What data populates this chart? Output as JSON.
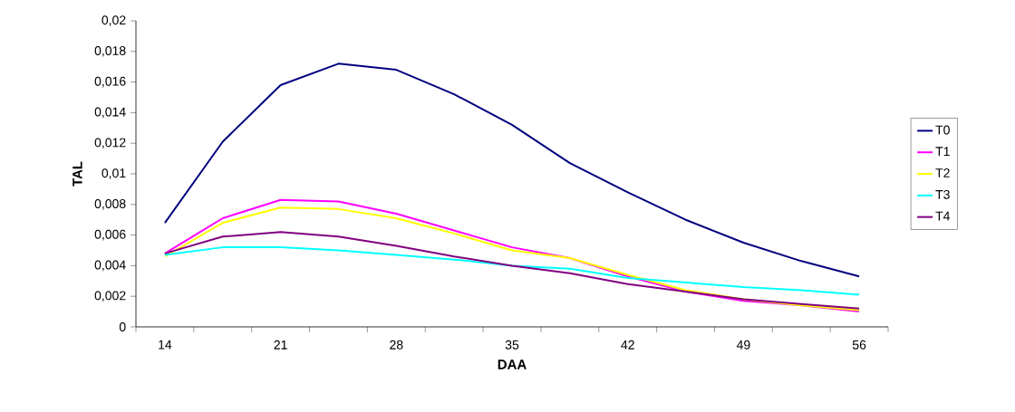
{
  "chart_data": {
    "type": "line",
    "xlabel": "DAA",
    "ylabel": "TAL",
    "categories": [
      "14",
      null,
      "21",
      null,
      "28",
      null,
      "35",
      null,
      "42",
      null,
      "49",
      null,
      "56"
    ],
    "series": [
      {
        "name": "T0",
        "color": "#000080",
        "values": [
          0.0068,
          0.0121,
          0.0158,
          0.0172,
          0.0168,
          0.0152,
          0.0132,
          0.0107,
          0.0088,
          0.007,
          0.0055,
          0.0043,
          0.0033
        ]
      },
      {
        "name": "T1",
        "color": "#ff00ff",
        "values": [
          0.0048,
          0.0071,
          0.0083,
          0.0082,
          0.0074,
          0.0063,
          0.0052,
          0.0045,
          0.0033,
          0.0023,
          0.0017,
          0.0014,
          0.001
        ]
      },
      {
        "name": "T2",
        "color": "#ffff00",
        "values": [
          0.0046,
          0.0068,
          0.0078,
          0.0077,
          0.0071,
          0.0061,
          0.005,
          0.0045,
          0.0034,
          0.0024,
          0.0018,
          0.0014,
          0.0011
        ]
      },
      {
        "name": "T3",
        "color": "#00ffff",
        "values": [
          0.0047,
          0.0052,
          0.0052,
          0.005,
          0.0047,
          0.0044,
          0.004,
          0.0038,
          0.0032,
          0.0029,
          0.0026,
          0.0024,
          0.0021
        ]
      },
      {
        "name": "T4",
        "color": "#800080",
        "values": [
          0.0048,
          0.0059,
          0.0062,
          0.0059,
          0.0053,
          0.0046,
          0.004,
          0.0035,
          0.0028,
          0.0023,
          0.0018,
          0.0015,
          0.0012
        ]
      }
    ],
    "ylim": [
      0,
      0.02
    ],
    "yticks": [
      0,
      {
        "value": 0.002,
        "label": "0,002"
      },
      {
        "value": 0.004,
        "label": "0,004"
      },
      {
        "value": 0.006,
        "label": "0,006"
      },
      {
        "value": 0.008,
        "label": "0,008"
      },
      {
        "value": 0.01,
        "label": "0,01"
      },
      {
        "value": 0.012,
        "label": "0,012"
      },
      {
        "value": 0.014,
        "label": "0,014"
      },
      {
        "value": 0.016,
        "label": "0,016"
      },
      {
        "value": 0.018,
        "label": "0,018"
      },
      {
        "value": 0.02,
        "label": "0,02"
      }
    ],
    "legend": "right",
    "grid": false,
    "marker": "none",
    "line_style": "solid"
  }
}
